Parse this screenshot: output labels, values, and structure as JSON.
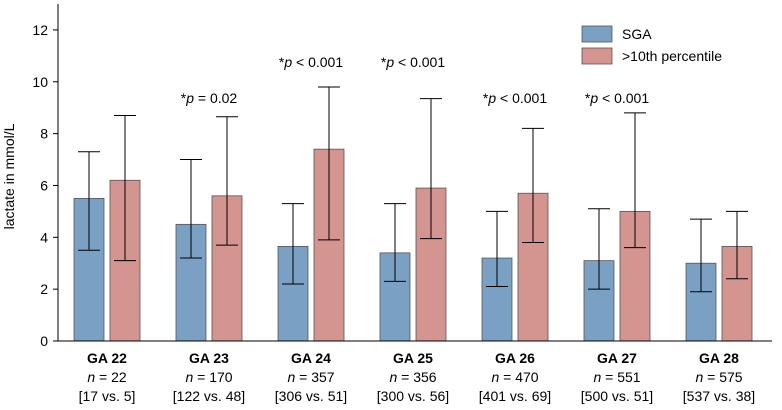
{
  "chart_data": {
    "type": "bar",
    "ylabel": "lactate in mmol/L",
    "ylim": [
      0,
      13
    ],
    "yticks": [
      0,
      2,
      4,
      6,
      8,
      10,
      12
    ],
    "groups": [
      {
        "label": "GA 22",
        "n_label": "n",
        "n_text": " = 22",
        "split": "[17 vs. 5]",
        "pvalue": null
      },
      {
        "label": "GA 23",
        "n_label": "n",
        "n_text": " = 170",
        "split": "[122 vs. 48]",
        "pvalue": {
          "star": "*",
          "p": "p",
          "text": " = 0.02"
        }
      },
      {
        "label": "GA 24",
        "n_label": "n",
        "n_text": " = 357",
        "split": "[306 vs. 51]",
        "pvalue": {
          "star": "*",
          "p": "p",
          "text": " < 0.001"
        }
      },
      {
        "label": "GA 25",
        "n_label": "n",
        "n_text": " = 356",
        "split": "[300 vs. 56]",
        "pvalue": {
          "star": "*",
          "p": "p",
          "text": " < 0.001"
        }
      },
      {
        "label": "GA 26",
        "n_label": "n",
        "n_text": " = 470",
        "split": "[401 vs. 69]",
        "pvalue": {
          "star": "*",
          "p": "p",
          "text": " < 0.001"
        }
      },
      {
        "label": "GA 27",
        "n_label": "n",
        "n_text": " = 551",
        "split": "[500 vs. 51]",
        "pvalue": {
          "star": "*",
          "p": "p",
          "text": " < 0.001"
        }
      },
      {
        "label": "GA 28",
        "n_label": "n",
        "n_text": " = 575",
        "split": "[537 vs. 38]",
        "pvalue": null
      }
    ],
    "series": [
      {
        "name": "SGA",
        "color": "#7aa0c4",
        "values": [
          5.5,
          4.5,
          3.65,
          3.4,
          3.2,
          3.1,
          3.0
        ],
        "err_low": [
          3.5,
          3.2,
          2.2,
          2.3,
          2.1,
          2.0,
          1.9
        ],
        "err_high": [
          7.3,
          7.0,
          5.3,
          5.3,
          5.0,
          5.1,
          4.7
        ]
      },
      {
        "name": ">10th percentile",
        "color": "#d49490",
        "values": [
          6.2,
          5.6,
          7.4,
          5.9,
          5.7,
          5.0,
          3.65
        ],
        "err_low": [
          3.1,
          3.7,
          3.9,
          3.95,
          3.8,
          3.6,
          2.4
        ],
        "err_high": [
          8.7,
          8.65,
          9.8,
          9.35,
          8.2,
          8.8,
          5.0
        ]
      }
    ],
    "legend_position": "top-right"
  }
}
